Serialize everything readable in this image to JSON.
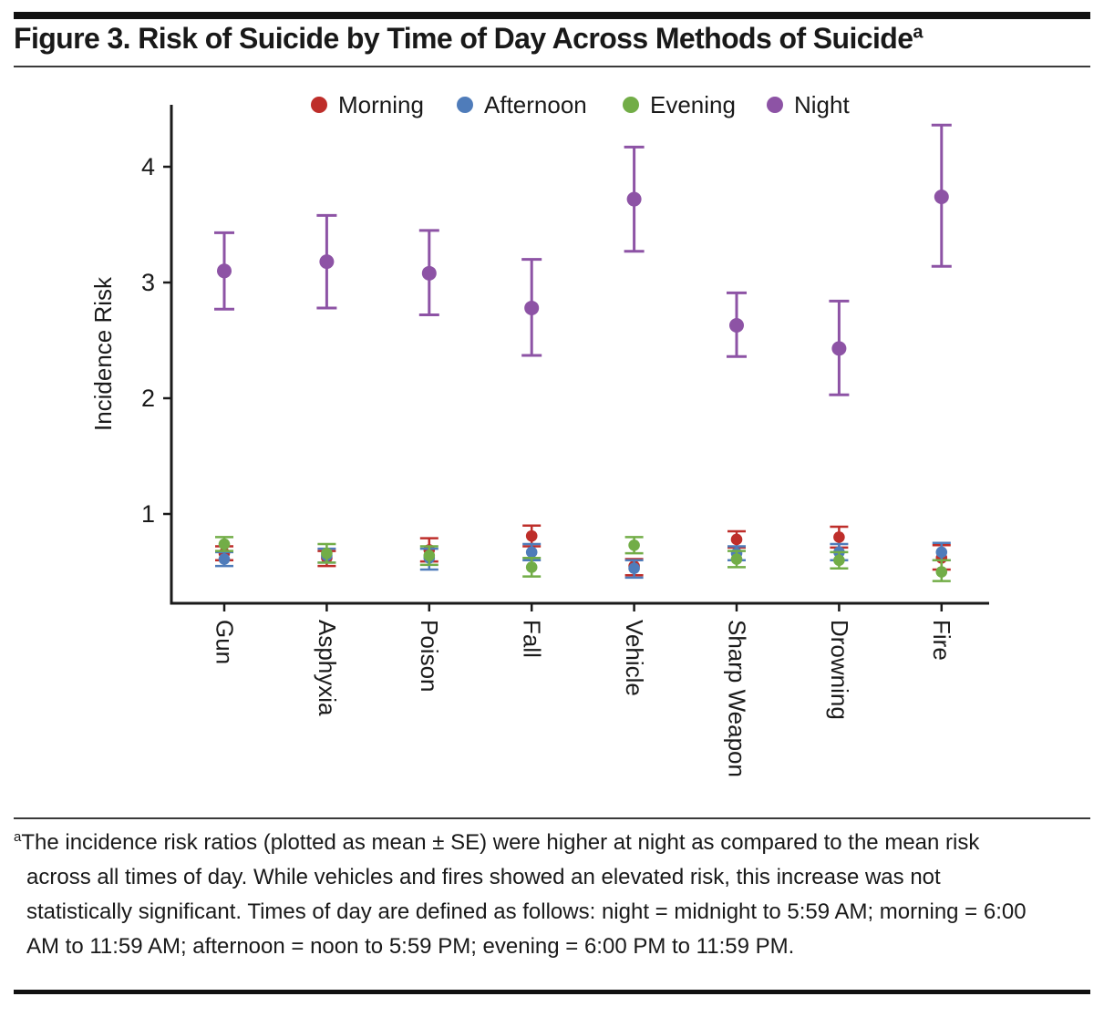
{
  "figure": {
    "title": "Figure 3. Risk of Suicide by Time of Day Across Methods of Suicide",
    "title_superscript": "a",
    "footnote_superscript": "a",
    "footnote": "The incidence risk ratios (plotted as mean ± SE) were higher at night as compared to the mean risk across all times of day. While vehicles and fires showed an elevated risk, this increase was not statistically significant. Times of day are defined as follows: night = midnight to 5:59 AM; morning = 6:00 AM to 11:59 AM; afternoon = noon to 5:59 PM; evening = 6:00 PM to 11:59 PM."
  },
  "chart_data": {
    "type": "scatter",
    "subtype": "point-with-error-bars (mean ± SE)",
    "title": "",
    "xlabel": "",
    "ylabel": "Incidence Risk",
    "yticks": [
      1,
      2,
      3,
      4
    ],
    "ylim": [
      0.2,
      4.6
    ],
    "grid": false,
    "legend_position": "top",
    "categories": [
      "Gun",
      "Asphyxia",
      "Poison",
      "Fall",
      "Vehicle",
      "Sharp Weapon",
      "Drowning",
      "Fire"
    ],
    "series": [
      {
        "name": "Morning",
        "color": "#be2e2a",
        "means": [
          0.66,
          0.62,
          0.69,
          0.81,
          0.55,
          0.78,
          0.8,
          0.62
        ],
        "lower": [
          0.6,
          0.55,
          0.59,
          0.72,
          0.47,
          0.71,
          0.71,
          0.52
        ],
        "upper": [
          0.72,
          0.68,
          0.79,
          0.9,
          0.61,
          0.85,
          0.89,
          0.73
        ]
      },
      {
        "name": "Afternoon",
        "color": "#4f7cba",
        "means": [
          0.61,
          0.64,
          0.62,
          0.67,
          0.53,
          0.66,
          0.67,
          0.67
        ],
        "lower": [
          0.55,
          0.58,
          0.52,
          0.6,
          0.45,
          0.6,
          0.6,
          0.6
        ],
        "upper": [
          0.67,
          0.7,
          0.7,
          0.74,
          0.6,
          0.72,
          0.74,
          0.75
        ]
      },
      {
        "name": "Evening",
        "color": "#72ad47",
        "means": [
          0.74,
          0.66,
          0.64,
          0.54,
          0.73,
          0.61,
          0.6,
          0.5
        ],
        "lower": [
          0.68,
          0.58,
          0.56,
          0.46,
          0.66,
          0.54,
          0.53,
          0.42
        ],
        "upper": [
          0.8,
          0.74,
          0.72,
          0.62,
          0.8,
          0.68,
          0.67,
          0.6
        ]
      },
      {
        "name": "Night",
        "color": "#8d53a5",
        "means": [
          3.1,
          3.18,
          3.08,
          2.78,
          3.72,
          2.63,
          2.43,
          3.74
        ],
        "lower": [
          2.77,
          2.78,
          2.72,
          2.37,
          3.27,
          2.36,
          2.03,
          3.14
        ],
        "upper": [
          3.43,
          3.58,
          3.45,
          3.2,
          4.17,
          2.91,
          2.84,
          4.36
        ]
      }
    ]
  }
}
